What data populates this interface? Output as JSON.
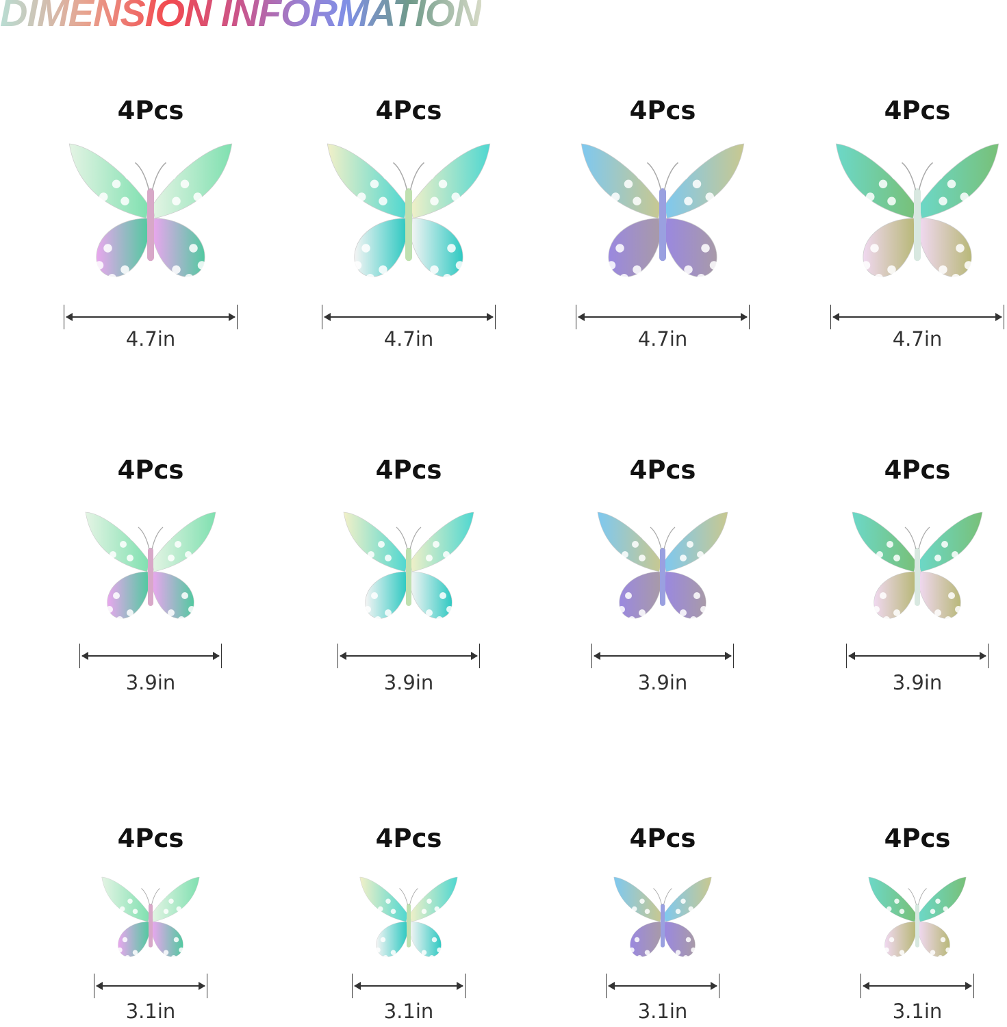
{
  "title": "DIMENSION INFORMATION",
  "styles": [
    {
      "icon": "butterfly-icon",
      "colors": {
        "ul": "#e4f4e4",
        "ur": "#7fe0b0",
        "ll": "#e9a6ee",
        "lr": "#52c9a0",
        "body": "#d8a8c8"
      }
    },
    {
      "icon": "butterfly-icon",
      "colors": {
        "ul": "#f2f0c8",
        "ur": "#4fd7d0",
        "ll": "#f4f4f4",
        "lr": "#2fc9c2",
        "body": "#bfe0b0"
      }
    },
    {
      "icon": "butterfly-icon",
      "colors": {
        "ul": "#7ec8f0",
        "ur": "#c8c890",
        "ll": "#9a88e0",
        "lr": "#a89aa8",
        "body": "#9aa0e0"
      }
    },
    {
      "icon": "butterfly-icon",
      "colors": {
        "ul": "#6cd8c8",
        "ur": "#78c078",
        "ll": "#f0d8f0",
        "lr": "#b8b878",
        "body": "#d8e8e0"
      }
    }
  ],
  "rows": [
    {
      "items": [
        {
          "qty": "4Pcs",
          "size": "4.7in"
        },
        {
          "qty": "4Pcs",
          "size": "4.7in"
        },
        {
          "qty": "4Pcs",
          "size": "4.7in"
        },
        {
          "qty": "4Pcs",
          "size": "4.7in"
        }
      ]
    },
    {
      "items": [
        {
          "qty": "4Pcs",
          "size": "3.9in"
        },
        {
          "qty": "4Pcs",
          "size": "3.9in"
        },
        {
          "qty": "4Pcs",
          "size": "3.9in"
        },
        {
          "qty": "4Pcs",
          "size": "3.9in"
        }
      ]
    },
    {
      "items": [
        {
          "qty": "4Pcs",
          "size": "3.1in"
        },
        {
          "qty": "4Pcs",
          "size": "3.1in"
        },
        {
          "qty": "4Pcs",
          "size": "3.1in"
        },
        {
          "qty": "4Pcs",
          "size": "3.1in"
        }
      ]
    }
  ]
}
